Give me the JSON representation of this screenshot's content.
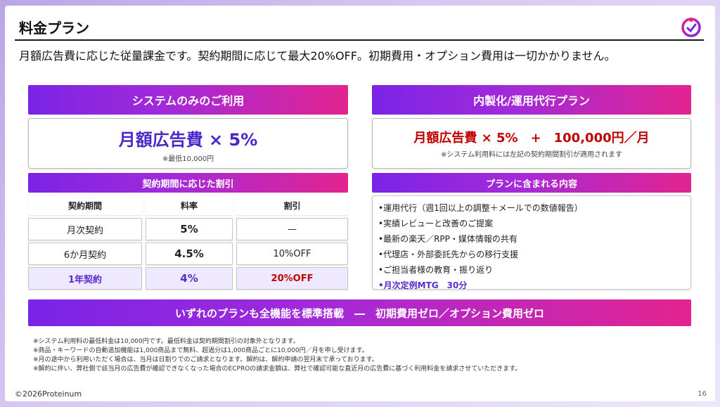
{
  "title": "料金プラン",
  "subtitle": "月額広告費に応じた従量課金です。契約期間に応じて最大20%OFF。初期費用・オプション費用は一切かかりません。",
  "colors": {
    "accent_purple": "#7a24e6",
    "accent_pink": "#e3238f",
    "price_purple": "#4b27c9",
    "price_red": "#c00000"
  },
  "left_plan": {
    "header": "システムのみのご利用",
    "price": "月額広告費 × 5%",
    "note": "※最低10,000円"
  },
  "right_plan": {
    "header": "内製化/運用代行プラン",
    "price": "月額広告費 × 5%　+　100,000円／月",
    "note": "※システム利用料には左記の契約期間割引が適用されます"
  },
  "discount": {
    "header": "契約期間に応じた割引",
    "columns": [
      "契約期間",
      "料率",
      "割引"
    ],
    "rows": [
      [
        "月次契約",
        "5%",
        "—"
      ],
      [
        "6か月契約",
        "4.5%",
        "10%OFF"
      ],
      [
        "1年契約",
        "4%",
        "20%OFF"
      ]
    ]
  },
  "includes": {
    "header": "プランに含まれる内容",
    "items": [
      "•運用代行（週1回以上の調整＋メールでの数値報告）",
      "•実績レビューと改善のご提案",
      "•最新の楽天／RPP・媒体情報の共有",
      "•代理店・外部委託先からの移行支援",
      "•ご担当者様の教育・振り返り",
      "•月次定例MTG　30分"
    ]
  },
  "banner": "いずれのプランも全機能を標準搭載　―　初期費用ゼロ／オプション費用ゼロ",
  "notes": [
    "※システム利用料の最低料金は10,000円です。最低料金は契約期間割引の対象外となります。",
    "※商品・キーワードの自動追加機能は1,000商品まで無料、超過分は1,000商品ごとに10,000円／月を申し受けます。",
    "※月の途中から利用いただく場合は、当月は日割りでのご請求となります。解約は、解約申請の翌月末で承っております。",
    "※解約に伴い、弊社側で該当月の広告費が確認できなくなった場合のECPROの請求金額は、弊社で確認可能な直近月の広告費に基づく利用料金を請求させていただきます。"
  ],
  "footer": "©2026Proteinum",
  "page_number": "16",
  "logo_icon": "proteinum-logo-icon"
}
